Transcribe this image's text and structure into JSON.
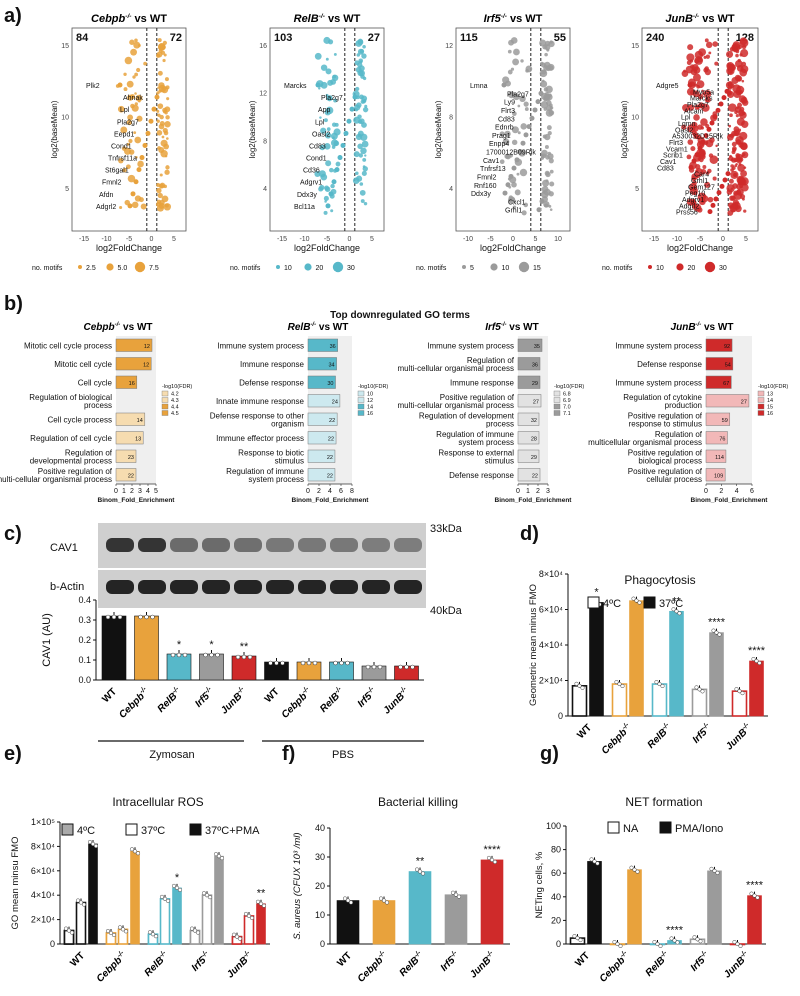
{
  "colors": {
    "cebpb": "#e8a23c",
    "relb": "#57b8c9",
    "irf5": "#9b9b9b",
    "junb": "#cf2a2a",
    "black": "#111111",
    "white": "#ffffff"
  },
  "panel_letters": [
    "a)",
    "b)",
    "c)",
    "d)",
    "e)",
    "f)",
    "g)"
  ],
  "panel_a": {
    "ylabel": "log2(baseMean)",
    "xlabel": "log2FoldChange",
    "legend_title": "no. motifs",
    "plots": [
      {
        "gene": "Cebpb",
        "sup": "-/-",
        "suffix": " vs WT",
        "down": "84",
        "up": "72",
        "legend_values": [
          "2.5",
          "5.0",
          "7.5"
        ],
        "xticks": [
          "-15",
          "-10",
          "-5",
          "0",
          "5"
        ],
        "yticks": [
          "5",
          "10",
          "15"
        ],
        "labels": [
          "Plk2",
          "Ahnak",
          "Lpl",
          "Pla2g7",
          "Eepd1",
          "Cond1",
          "Tnfrsf11a",
          "St6gal1",
          "Fmnl2",
          "Afdn",
          "Adgrl2"
        ]
      },
      {
        "gene": "RelB",
        "sup": "-/-",
        "suffix": " vs WT",
        "down": "103",
        "up": "27",
        "legend_values": [
          "10",
          "20",
          "30"
        ],
        "xticks": [
          "-15",
          "-10",
          "-5",
          "0",
          "5"
        ],
        "yticks": [
          "4",
          "8",
          "12",
          "16"
        ],
        "labels": [
          "Marcks",
          "Pla2g7",
          "App",
          "Lpl",
          "Oasl2",
          "Cd83",
          "Cond1",
          "Cd36",
          "Adgrv1",
          "Ddx3y",
          "Bcl11a"
        ]
      },
      {
        "gene": "Irf5",
        "sup": "-/-",
        "suffix": " vs WT",
        "down": "115",
        "up": "55",
        "legend_values": [
          "5",
          "10",
          "15"
        ],
        "xticks": [
          "-10",
          "-5",
          "0",
          "5",
          "10"
        ],
        "yticks": [
          "4",
          "8",
          "12"
        ],
        "labels": [
          "Lmna",
          "Pla2g7",
          "Ly9",
          "Flrt3",
          "Cd83",
          "Ednrb",
          "Prag1",
          "Enpp4",
          "1700012B09Rik",
          "Cav1",
          "Tnfrsf13",
          "Fmnl2",
          "Rnf160",
          "Ddx3y",
          "Cxcl1",
          "Grhl1"
        ]
      },
      {
        "gene": "JunB",
        "sup": "-/-",
        "suffix": " vs WT",
        "down": "240",
        "up": "128",
        "legend_values": [
          "10",
          "20",
          "30"
        ],
        "xticks": [
          "-15",
          "-10",
          "-5",
          "0",
          "5"
        ],
        "yticks": [
          "5",
          "10",
          "15"
        ],
        "labels": [
          "Adgre5",
          "Myo5a",
          "Marcks",
          "Pla2g7",
          "Alcam",
          "Lpl",
          "Lgmn",
          "Oasl2",
          "A530032D15Rik",
          "Flrt3",
          "Vcam1",
          "Scrib1",
          "Cav1",
          "Cd83",
          "Car4",
          "Grhl1",
          "Gem127",
          "Peg10",
          "Adgrv1",
          "Adgrl2",
          "Prss56"
        ]
      }
    ]
  },
  "panel_b": {
    "title": "Top downregulated GO terms",
    "xlabel": "Binom_Fold_Enrichment",
    "legend_title": "-log10(FDR)",
    "plots": [
      {
        "gene": "Cebpb",
        "sup": "-/-",
        "suffix": " vs WT",
        "xmax": 5,
        "xticks": [
          "0",
          "1",
          "2",
          "3",
          "4",
          "5"
        ],
        "legend": [
          "4.2",
          "4.3",
          "4.4",
          "4.5"
        ],
        "terms": [
          {
            "label": "Mitotic cell cycle process",
            "value": 4.5,
            "n": "12"
          },
          {
            "label": "Mitotic cell cycle",
            "value": 4.4,
            "n": "12"
          },
          {
            "label": "Cell cycle",
            "value": 2.6,
            "n": "16"
          },
          {
            "label": "Regulation of biological process",
            "value": 0.0,
            "n": ""
          },
          {
            "label": "Cell cycle process",
            "value": 3.6,
            "n": "14"
          },
          {
            "label": "Regulation of cell cycle",
            "value": 3.4,
            "n": "13"
          },
          {
            "label": "Regulation of developmental process",
            "value": 2.5,
            "n": "23"
          },
          {
            "label": "Positive regulation of multi-cellular organismal process",
            "value": 2.5,
            "n": "22"
          }
        ]
      },
      {
        "gene": "RelB",
        "sup": "-/-",
        "suffix": " vs WT",
        "xmax": 8,
        "xticks": [
          "0",
          "2",
          "4",
          "6",
          "8"
        ],
        "legend": [
          "10",
          "12",
          "14",
          "16"
        ],
        "terms": [
          {
            "label": "Immune system process",
            "value": 5.4,
            "n": "36"
          },
          {
            "label": "Immune response",
            "value": 5.2,
            "n": "34"
          },
          {
            "label": "Defense response",
            "value": 5.0,
            "n": "30"
          },
          {
            "label": "Innate immune response",
            "value": 5.8,
            "n": "24"
          },
          {
            "label": "Defense response to other organism",
            "value": 5.3,
            "n": "22"
          },
          {
            "label": "Immune effector process",
            "value": 5.1,
            "n": "22"
          },
          {
            "label": "Response to biotic stimulus",
            "value": 4.9,
            "n": "22"
          },
          {
            "label": "Regulation of immune system process",
            "value": 4.9,
            "n": "22"
          }
        ]
      },
      {
        "gene": "Irf5",
        "sup": "-/-",
        "suffix": " vs WT",
        "xmax": 3,
        "xticks": [
          "0",
          "1",
          "2",
          "3"
        ],
        "legend": [
          "6.8",
          "6.9",
          "7.0",
          "7.1"
        ],
        "terms": [
          {
            "label": "Immune system process",
            "value": 2.4,
            "n": "35"
          },
          {
            "label": "Regulation of multi-cellular organismal process",
            "value": 2.2,
            "n": "36"
          },
          {
            "label": "Immune response",
            "value": 2.2,
            "n": "29"
          },
          {
            "label": "Positive regulation of multi-cellular organismal process",
            "value": 2.3,
            "n": "27"
          },
          {
            "label": "Regulation of development process",
            "value": 2.1,
            "n": "32"
          },
          {
            "label": "Regulation of immune system process",
            "value": 2.1,
            "n": "28"
          },
          {
            "label": "Response to external stimulus",
            "value": 2.1,
            "n": "29"
          },
          {
            "label": "Defense response",
            "value": 2.2,
            "n": "22"
          }
        ]
      },
      {
        "gene": "JunB",
        "sup": "-/-",
        "suffix": " vs WT",
        "xmax": 6,
        "xticks": [
          "0",
          "2",
          "4",
          "6"
        ],
        "legend": [
          "13",
          "14",
          "15",
          "16"
        ],
        "terms": [
          {
            "label": "Immune system process",
            "value": 3.4,
            "n": "92"
          },
          {
            "label": "Defense response",
            "value": 3.5,
            "n": "54"
          },
          {
            "label": "Immune system process",
            "value": 3.3,
            "n": "67"
          },
          {
            "label": "Regulation of cytokine production",
            "value": 5.6,
            "n": "27"
          },
          {
            "label": "Positive regulation of response to stimulus",
            "value": 3.1,
            "n": "59"
          },
          {
            "label": "Regulation of multicellular organismal process",
            "value": 2.8,
            "n": "76"
          },
          {
            "label": "Positive regulation of biological process",
            "value": 2.6,
            "n": "114"
          },
          {
            "label": "Positive regulation of cellular process",
            "value": 2.5,
            "n": "109"
          }
        ]
      }
    ]
  },
  "panel_c": {
    "blot_labels": [
      "CAV1",
      "b-Actin"
    ],
    "size_labels": [
      "33kDa",
      "40kDa"
    ],
    "ylabel": "CAV1 (AU)",
    "yticks": [
      "0.0",
      "0.1",
      "0.2",
      "0.3",
      "0.4"
    ],
    "groups": [
      "Zymosan",
      "PBS"
    ],
    "chart_data": {
      "type": "bar",
      "categories": [
        "WT",
        "Cebpb-/-",
        "RelB-/-",
        "Irf5-/-",
        "JunB-/-",
        "WT",
        "Cebpb-/-",
        "RelB-/-",
        "Irf5-/-",
        "JunB-/-"
      ],
      "values": [
        0.32,
        0.32,
        0.13,
        0.13,
        0.12,
        0.09,
        0.09,
        0.09,
        0.07,
        0.07
      ],
      "significance": [
        "",
        "",
        "*",
        "*",
        "**",
        "",
        "",
        "",
        "",
        ""
      ],
      "ylim": [
        0,
        0.4
      ],
      "ylabel": "CAV1 (AU)"
    }
  },
  "panel_d": {
    "title": "Phagocytosis",
    "legend": [
      "4ºC",
      "37ºC"
    ],
    "ylabel": "Geometric mean minus FMO",
    "yticks": [
      "0",
      "2×10⁴",
      "4×10⁴",
      "6×10⁴",
      "8×10⁴"
    ],
    "chart_data": {
      "type": "bar",
      "categories": [
        "WT",
        "Cebpb-/-",
        "RelB-/-",
        "Irf5-/-",
        "JunB-/-"
      ],
      "series": [
        {
          "name": "4ºC",
          "values": [
            17000,
            18000,
            18000,
            15000,
            14000
          ]
        },
        {
          "name": "37ºC",
          "values": [
            64000,
            65000,
            59000,
            47000,
            31000
          ]
        }
      ],
      "significance": [
        "*",
        "",
        "**",
        "****",
        "****"
      ],
      "ylim": [
        0,
        80000
      ],
      "ylabel": "Geometric mean minus FMO"
    }
  },
  "panel_e": {
    "title": "Intracellular ROS",
    "legend": [
      "4ºC",
      "37ºC",
      "37ºC+PMA"
    ],
    "ylabel": "GO mean minsu FMO",
    "yticks": [
      "0",
      "2×10⁴",
      "4×10⁴",
      "6×10⁴",
      "8×10⁴",
      "1×10⁵"
    ],
    "chart_data": {
      "type": "bar",
      "categories": [
        "WT",
        "Cebpb-/-",
        "RelB-/-",
        "Irf5-/-",
        "JunB-/-"
      ],
      "series": [
        {
          "name": "4ºC",
          "values": [
            11000,
            9000,
            8000,
            11000,
            6000
          ]
        },
        {
          "name": "37ºC",
          "values": [
            34000,
            12000,
            37000,
            40000,
            23000
          ]
        },
        {
          "name": "37ºC+PMA",
          "values": [
            82000,
            76000,
            46000,
            72000,
            33000
          ]
        }
      ],
      "significance": [
        "",
        "",
        "*",
        "",
        "**"
      ],
      "ylim": [
        0,
        100000
      ],
      "ylabel": "GO mean minsu FMO"
    }
  },
  "panel_f": {
    "title": "Bacterial killing",
    "ylabel": "S. aureus (CFUX 10³ /ml)",
    "yticks": [
      "0",
      "10",
      "20",
      "30",
      "40"
    ],
    "chart_data": {
      "type": "bar",
      "categories": [
        "WT",
        "Cebpb-/-",
        "RelB-/-",
        "Irf5-/-",
        "JunB-/-"
      ],
      "values": [
        15,
        15,
        25,
        17,
        29
      ],
      "significance": [
        "",
        "",
        "**",
        "",
        "****"
      ],
      "ylim": [
        0,
        40
      ],
      "ylabel": "S. aureus (CFUX 10³ /ml)"
    }
  },
  "panel_g": {
    "title": "NET formation",
    "legend": [
      "NA",
      "PMA/Iono"
    ],
    "ylabel": "NETing cells, %",
    "yticks": [
      "0",
      "20",
      "40",
      "60",
      "80",
      "100"
    ],
    "chart_data": {
      "type": "bar",
      "categories": [
        "WT",
        "Cebpb-/-",
        "RelB-/-",
        "Irf5-/-",
        "JunB-/-"
      ],
      "series": [
        {
          "name": "NA",
          "values": [
            5,
            0,
            0,
            4,
            0
          ]
        },
        {
          "name": "PMA/Iono",
          "values": [
            70,
            63,
            3,
            62,
            41
          ]
        }
      ],
      "significance": [
        "",
        "",
        "****",
        "",
        "****"
      ],
      "ylim": [
        0,
        100
      ],
      "ylabel": "NETing cells, %"
    }
  },
  "categories": [
    {
      "base": "WT",
      "sup": ""
    },
    {
      "base": "Cebpb",
      "sup": "-/-"
    },
    {
      "base": "RelB",
      "sup": "-/-"
    },
    {
      "base": "Irf5",
      "sup": "-/-"
    },
    {
      "base": "JunB",
      "sup": "-/-"
    }
  ]
}
